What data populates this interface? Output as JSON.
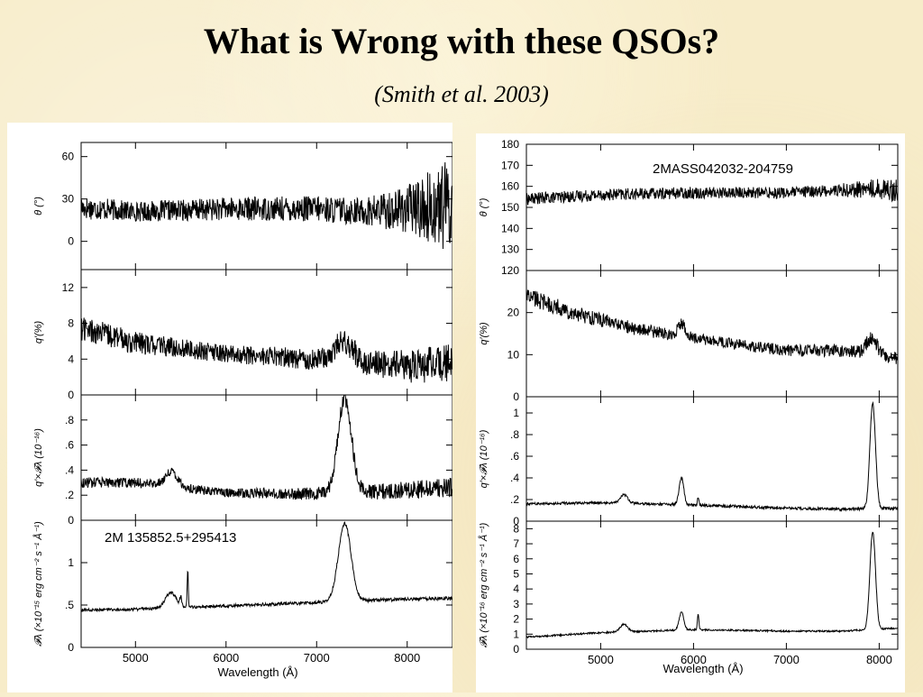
{
  "slide": {
    "title": "What is Wrong with these QSOs?",
    "subtitle": "(Smith et al. 2003)"
  },
  "chart_data": [
    {
      "type": "line",
      "object": "2M 135852.5+295413",
      "xlabel": "Wavelength (Å)",
      "xlim": [
        4400,
        8500
      ],
      "xticks": [
        5000,
        6000,
        7000,
        8000
      ],
      "panels": [
        {
          "ylabel": "θ (°)",
          "ylim": [
            -20,
            70
          ],
          "yticks": [
            0,
            30,
            60
          ],
          "continuum": [
            [
              4400,
              24
            ],
            [
              5000,
              21
            ],
            [
              6000,
              23
            ],
            [
              7000,
              23
            ],
            [
              7500,
              21
            ],
            [
              8500,
              25
            ]
          ],
          "lines": [],
          "noise": [
            [
              4400,
              6
            ],
            [
              5000,
              5
            ],
            [
              7500,
              7
            ],
            [
              8000,
              12
            ],
            [
              8500,
              25
            ]
          ]
        },
        {
          "ylabel": "q′(%)",
          "ylim": [
            0,
            14
          ],
          "yticks": [
            0,
            4,
            8,
            12
          ],
          "continuum": [
            [
              4400,
              7.5
            ],
            [
              5000,
              5.8
            ],
            [
              6000,
              4.6
            ],
            [
              7000,
              4.0
            ],
            [
              8000,
              3.2
            ],
            [
              8500,
              3.5
            ]
          ],
          "lines": [
            {
              "center": 7300,
              "amp": 2.2,
              "width": 100
            }
          ],
          "noise": [
            [
              4400,
              1.0
            ],
            [
              6000,
              0.7
            ],
            [
              7500,
              1.0
            ],
            [
              8500,
              1.6
            ]
          ]
        },
        {
          "ylabel": "q′×𝓕λ (10⁻¹⁶)",
          "ylim": [
            0,
            1
          ],
          "yticks": [
            0,
            0.2,
            0.4,
            0.6,
            0.8
          ],
          "ytick_labels": [
            "0",
            ".2",
            ".4",
            ".6",
            ".8"
          ],
          "continuum": [
            [
              4400,
              0.3
            ],
            [
              5000,
              0.3
            ],
            [
              6000,
              0.22
            ],
            [
              7000,
              0.21
            ],
            [
              8000,
              0.24
            ],
            [
              8500,
              0.26
            ]
          ],
          "lines": [
            {
              "center": 5400,
              "amp": 0.12,
              "width": 70
            },
            {
              "center": 7310,
              "amp": 0.75,
              "width": 75
            }
          ],
          "noise": [
            [
              4400,
              0.03
            ],
            [
              6000,
              0.025
            ],
            [
              8000,
              0.05
            ],
            [
              8500,
              0.06
            ]
          ]
        },
        {
          "ylabel": "𝓕λ (×10⁻¹⁵ erg cm⁻² s⁻¹ Å⁻¹)",
          "ylim": [
            0,
            1.5
          ],
          "yticks": [
            0,
            0.5,
            1
          ],
          "ytick_labels": [
            "0",
            ".5",
            "1"
          ],
          "label": "2M  135852.5+295413",
          "continuum": [
            [
              4400,
              0.44
            ],
            [
              5000,
              0.45
            ],
            [
              6000,
              0.49
            ],
            [
              7000,
              0.53
            ],
            [
              8000,
              0.57
            ],
            [
              8500,
              0.58
            ]
          ],
          "lines": [
            {
              "center": 5390,
              "amp": 0.18,
              "width": 60
            },
            {
              "center": 5500,
              "amp": 0.1,
              "width": 10
            },
            {
              "center": 5577,
              "amp": 0.45,
              "width": 6
            },
            {
              "center": 7310,
              "amp": 0.92,
              "width": 70
            }
          ],
          "noise": [
            [
              4400,
              0.012
            ],
            [
              8500,
              0.015
            ]
          ]
        }
      ]
    },
    {
      "type": "line",
      "object": "2MASS042032-204759",
      "xlabel": "Wavelength (Å)",
      "xlim": [
        4200,
        8200
      ],
      "xticks": [
        5000,
        6000,
        7000,
        8000
      ],
      "panels": [
        {
          "ylabel": "θ (°)",
          "ylim": [
            120,
            180
          ],
          "yticks": [
            120,
            130,
            140,
            150,
            160,
            170,
            180
          ],
          "label": "2MASS042032-204759",
          "continuum": [
            [
              4200,
              154
            ],
            [
              5000,
              156
            ],
            [
              6000,
              157
            ],
            [
              7000,
              157
            ],
            [
              8000,
              159
            ],
            [
              8200,
              158
            ]
          ],
          "lines": [],
          "noise": [
            [
              4200,
              2
            ],
            [
              7500,
              2
            ],
            [
              8200,
              4
            ]
          ]
        },
        {
          "ylabel": "q′(%)",
          "ylim": [
            0,
            30
          ],
          "yticks": [
            0,
            10,
            20
          ],
          "continuum": [
            [
              4200,
              24
            ],
            [
              4700,
              20
            ],
            [
              5400,
              16
            ],
            [
              6000,
              14
            ],
            [
              6600,
              12
            ],
            [
              7000,
              11
            ],
            [
              7600,
              11
            ],
            [
              8200,
              9
            ]
          ],
          "lines": [
            {
              "center": 5870,
              "amp": 3,
              "width": 40
            },
            {
              "center": 7920,
              "amp": 4,
              "width": 60
            }
          ],
          "noise": [
            [
              4200,
              1.5
            ],
            [
              6000,
              0.9
            ],
            [
              8200,
              1.2
            ]
          ]
        },
        {
          "ylabel": "q′×𝓕λ (10⁻¹⁶)",
          "ylim": [
            0,
            1.15
          ],
          "yticks": [
            0,
            0.2,
            0.4,
            0.6,
            0.8,
            1
          ],
          "ytick_labels": [
            "0",
            ".2",
            ".4",
            ".6",
            ".8",
            "1"
          ],
          "continuum": [
            [
              4200,
              0.16
            ],
            [
              5000,
              0.17
            ],
            [
              6000,
              0.15
            ],
            [
              7000,
              0.12
            ],
            [
              7600,
              0.11
            ],
            [
              8200,
              0.12
            ]
          ],
          "lines": [
            {
              "center": 5250,
              "amp": 0.08,
              "width": 40
            },
            {
              "center": 5870,
              "amp": 0.25,
              "width": 25
            },
            {
              "center": 6050,
              "amp": 0.07,
              "width": 8
            },
            {
              "center": 7930,
              "amp": 0.98,
              "width": 30
            }
          ],
          "noise": [
            [
              4200,
              0.008
            ],
            [
              8200,
              0.01
            ]
          ]
        },
        {
          "ylabel": "𝓕λ (×10⁻¹⁶ erg cm⁻² s⁻¹ Å⁻¹)",
          "ylim": [
            0,
            8.5
          ],
          "yticks": [
            0,
            1,
            2,
            3,
            4,
            5,
            6,
            7,
            8
          ],
          "continuum": [
            [
              4200,
              0.8
            ],
            [
              5000,
              1.1
            ],
            [
              6000,
              1.3
            ],
            [
              7000,
              1.2
            ],
            [
              7600,
              1.2
            ],
            [
              8200,
              1.4
            ]
          ],
          "lines": [
            {
              "center": 5250,
              "amp": 0.5,
              "width": 40
            },
            {
              "center": 5870,
              "amp": 1.2,
              "width": 25
            },
            {
              "center": 6050,
              "amp": 1.0,
              "width": 8
            },
            {
              "center": 7930,
              "amp": 6.5,
              "width": 30
            }
          ],
          "noise": [
            [
              4200,
              0.04
            ],
            [
              8200,
              0.04
            ]
          ]
        }
      ]
    }
  ]
}
